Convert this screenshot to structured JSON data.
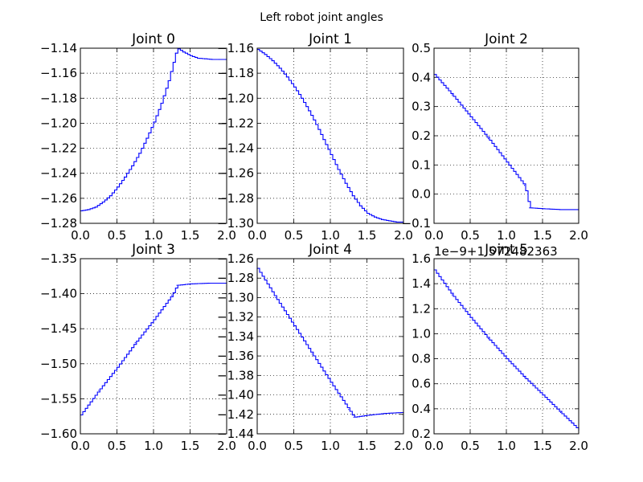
{
  "chart_data": {
    "suptitle": "Left robot  joint angles",
    "type": "line",
    "subplots": [
      {
        "title": "Joint 0",
        "xlim": [
          0.0,
          2.0
        ],
        "ylim": [
          -1.28,
          -1.14
        ],
        "xticks": [
          "0.0",
          "0.5",
          "1.0",
          "1.5",
          "2.0"
        ],
        "yticks": [
          "-1.28",
          "-1.26",
          "-1.24",
          "-1.22",
          "-1.20",
          "-1.18",
          "-1.16",
          "-1.14"
        ],
        "offset_text": "",
        "grid": true,
        "x": [
          0,
          0.1,
          0.2,
          0.3,
          0.4,
          0.5,
          0.6,
          0.7,
          0.8,
          0.9,
          1.0,
          1.1,
          1.2,
          1.3,
          1.32,
          1.4,
          1.5,
          1.6,
          1.7,
          1.8,
          1.9,
          2.0
        ],
        "y": [
          -1.27,
          -1.269,
          -1.267,
          -1.263,
          -1.258,
          -1.251,
          -1.243,
          -1.234,
          -1.224,
          -1.212,
          -1.199,
          -1.184,
          -1.166,
          -1.144,
          -1.14,
          -1.143,
          -1.146,
          -1.148,
          -1.1485,
          -1.149,
          -1.149,
          -1.149
        ]
      },
      {
        "title": "Joint 1",
        "xlim": [
          0.0,
          2.0
        ],
        "ylim": [
          -1.3,
          -1.16
        ],
        "xticks": [
          "0.0",
          "0.5",
          "1.0",
          "1.5",
          "2.0"
        ],
        "yticks": [
          "-1.30",
          "-1.28",
          "-1.26",
          "-1.24",
          "-1.22",
          "-1.20",
          "-1.18",
          "-1.16"
        ],
        "offset_text": "",
        "grid": true,
        "x": [
          0,
          0.1,
          0.2,
          0.3,
          0.4,
          0.5,
          0.6,
          0.7,
          0.8,
          0.9,
          1.0,
          1.1,
          1.2,
          1.3,
          1.4,
          1.5,
          1.6,
          1.7,
          1.8,
          1.9,
          2.0
        ],
        "y": [
          -1.161,
          -1.165,
          -1.17,
          -1.176,
          -1.183,
          -1.191,
          -1.2,
          -1.21,
          -1.221,
          -1.233,
          -1.245,
          -1.257,
          -1.268,
          -1.278,
          -1.286,
          -1.292,
          -1.295,
          -1.297,
          -1.298,
          -1.299,
          -1.299
        ]
      },
      {
        "title": "Joint 2",
        "xlim": [
          0.0,
          2.0
        ],
        "ylim": [
          -0.1,
          0.5
        ],
        "xticks": [
          "0.0",
          "0.5",
          "1.0",
          "1.5",
          "2.0"
        ],
        "yticks": [
          "-0.1",
          "0.0",
          "0.1",
          "0.2",
          "0.3",
          "0.4",
          "0.5"
        ],
        "offset_text": "",
        "grid": true,
        "x": [
          0,
          0.25,
          0.5,
          0.75,
          1.0,
          1.25,
          1.32,
          1.5,
          1.75,
          2.0
        ],
        "y": [
          0.41,
          0.34,
          0.265,
          0.19,
          0.11,
          0.03,
          -0.047,
          -0.05,
          -0.053,
          -0.053
        ]
      },
      {
        "title": "Joint 3",
        "xlim": [
          0.0,
          2.0
        ],
        "ylim": [
          -1.6,
          -1.35
        ],
        "xticks": [
          "0.0",
          "0.5",
          "1.0",
          "1.5",
          "2.0"
        ],
        "yticks": [
          "-1.60",
          "-1.55",
          "-1.50",
          "-1.45",
          "-1.40",
          "-1.35"
        ],
        "offset_text": "",
        "grid": true,
        "x": [
          0,
          0.25,
          0.5,
          0.75,
          1.0,
          1.25,
          1.32,
          1.5,
          1.75,
          2.0
        ],
        "y": [
          -1.573,
          -1.538,
          -1.505,
          -1.47,
          -1.437,
          -1.402,
          -1.388,
          -1.386,
          -1.385,
          -1.385
        ]
      },
      {
        "title": "Joint 4",
        "xlim": [
          0.0,
          2.0
        ],
        "ylim": [
          -1.44,
          -1.26
        ],
        "xticks": [
          "0.0",
          "0.5",
          "1.0",
          "1.5",
          "2.0"
        ],
        "yticks": [
          "-1.44",
          "-1.42",
          "-1.40",
          "-1.38",
          "-1.36",
          "-1.34",
          "-1.32",
          "-1.30",
          "-1.28",
          "-1.26"
        ],
        "offset_text": "",
        "grid": true,
        "x": [
          0,
          0.25,
          0.5,
          0.75,
          1.0,
          1.25,
          1.32,
          1.5,
          1.75,
          2.0
        ],
        "y": [
          -1.27,
          -1.3,
          -1.329,
          -1.358,
          -1.387,
          -1.415,
          -1.423,
          -1.421,
          -1.419,
          -1.418
        ]
      },
      {
        "title": "Joint 5",
        "xlim": [
          0.0,
          2.0
        ],
        "ylim": [
          0.2,
          1.6
        ],
        "xticks": [
          "0.0",
          "0.5",
          "1.0",
          "1.5",
          "2.0"
        ],
        "yticks": [
          "0.2",
          "0.4",
          "0.6",
          "0.8",
          "1.0",
          "1.2",
          "1.4",
          "1.6"
        ],
        "offset_text": "1e−9+1.572482363",
        "grid": true,
        "x": [
          0,
          0.25,
          0.5,
          0.75,
          1.0,
          1.25,
          1.5,
          1.75,
          2.0
        ],
        "y": [
          1.51,
          1.31,
          1.13,
          0.96,
          0.8,
          0.65,
          0.51,
          0.37,
          0.23
        ]
      }
    ],
    "colors": {
      "line": "#0000ff",
      "axes": "#000000",
      "background": "#ffffff"
    }
  }
}
